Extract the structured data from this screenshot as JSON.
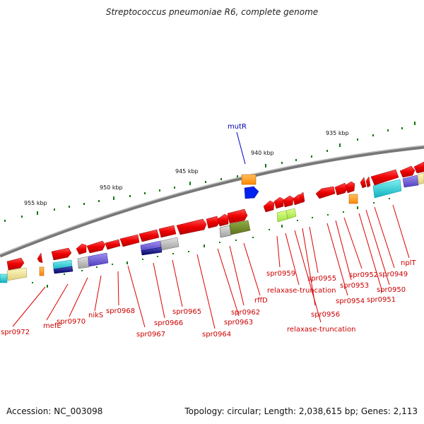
{
  "title": "Streptococcus pneumoniae R6, complete genome",
  "accession": "Accession: NC_003098",
  "topology": "Topology: circular; Length: 2,038,615 bp; Genes: 2,113",
  "ticks": [
    "935 kbp",
    "940 kbp",
    "945 kbp",
    "950 kbp",
    "955 kbp"
  ],
  "mutation_label": "mutR",
  "gene_labels": {
    "spr0972": "spr0972",
    "mefE": "mefE",
    "spr0970": "spr0970",
    "nikS": "nikS",
    "spr0968": "spr0968",
    "spr0967": "spr0967",
    "spr0966": "spr0966",
    "spr0965": "spr0965",
    "spr0964": "spr0964",
    "spr0963": "spr0963",
    "spr0962": "spr0962",
    "rffD": "rffD",
    "spr0959": "spr0959",
    "relaxase1": "relaxase-truncation",
    "spr0956": "spr0956",
    "relaxase2": "relaxase-truncation",
    "spr0955": "spr0955",
    "spr0954": "spr0954",
    "spr0953": "spr0953",
    "spr0952": "spr0952",
    "spr0951": "spr0951",
    "spr0950": "spr0950",
    "spr0949": "spr0949",
    "nplT": "nplT"
  },
  "colors": {
    "gene": "#ee0000",
    "backbone": "#808080",
    "tick": "#006600",
    "mutation": "#0000aa"
  }
}
